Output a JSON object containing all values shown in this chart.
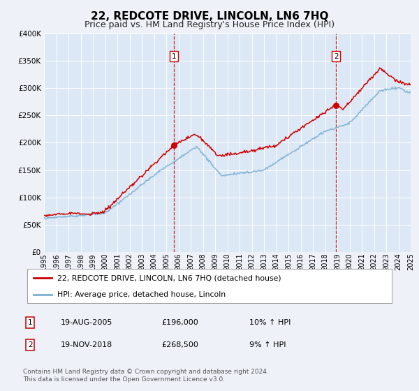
{
  "title": "22, REDCOTE DRIVE, LINCOLN, LN6 7HQ",
  "subtitle": "Price paid vs. HM Land Registry's House Price Index (HPI)",
  "ylim": [
    0,
    400000
  ],
  "xlim_start": 1995,
  "xlim_end": 2025,
  "yticks": [
    0,
    50000,
    100000,
    150000,
    200000,
    250000,
    300000,
    350000,
    400000
  ],
  "ytick_labels": [
    "£0",
    "£50K",
    "£100K",
    "£150K",
    "£200K",
    "£250K",
    "£300K",
    "£350K",
    "£400K"
  ],
  "background_color": "#eef2f8",
  "plot_bg_color": "#dce8f5",
  "grid_color": "#ffffff",
  "red_line_color": "#cc0000",
  "blue_line_color": "#7aafd4",
  "marker1_date": 2005.635,
  "marker1_value": 196000,
  "marker2_date": 2018.89,
  "marker2_value": 268500,
  "legend_label_red": "22, REDCOTE DRIVE, LINCOLN, LN6 7HQ (detached house)",
  "legend_label_blue": "HPI: Average price, detached house, Lincoln",
  "annotation1_num": "1",
  "annotation1_date": "19-AUG-2005",
  "annotation1_price": "£196,000",
  "annotation1_hpi": "10% ↑ HPI",
  "annotation2_num": "2",
  "annotation2_date": "19-NOV-2018",
  "annotation2_price": "£268,500",
  "annotation2_hpi": "9% ↑ HPI",
  "footer1": "Contains HM Land Registry data © Crown copyright and database right 2024.",
  "footer2": "This data is licensed under the Open Government Licence v3.0.",
  "title_fontsize": 11,
  "subtitle_fontsize": 9,
  "tick_fontsize": 7.5
}
